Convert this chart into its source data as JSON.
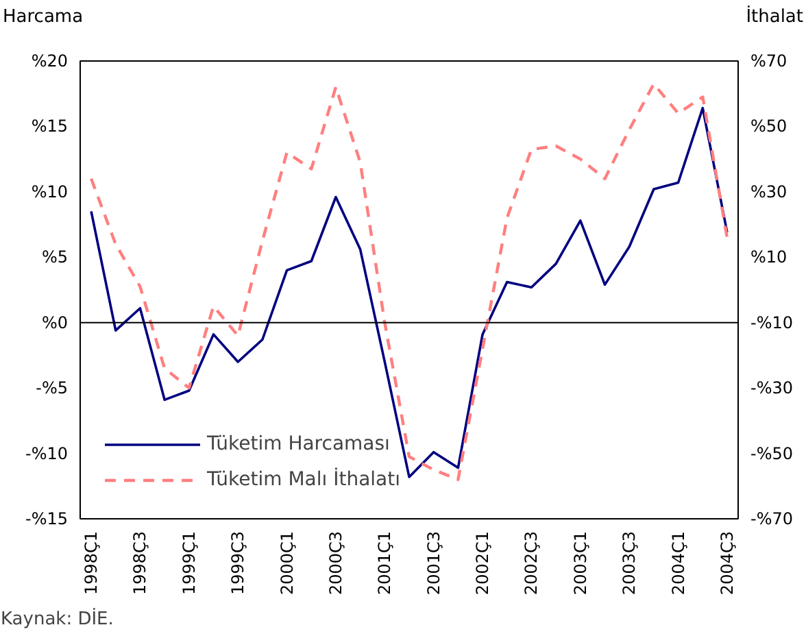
{
  "chart_data": {
    "type": "line",
    "ylabel": "Harcama",
    "y2label": "İthalat",
    "categories": [
      "1998Ç1",
      null,
      "1998Ç3",
      null,
      "1999Ç1",
      null,
      "1999Ç3",
      null,
      "2000Ç1",
      null,
      "2000Ç3",
      null,
      "2001Ç1",
      null,
      "2001Ç3",
      null,
      "2002Ç1",
      null,
      "2002Ç3",
      null,
      "2003Ç1",
      null,
      "2003Ç3",
      null,
      "2004Ç1",
      null,
      "2004Ç3"
    ],
    "series": [
      {
        "name": "Tüketim Harcaması",
        "color": "#000080",
        "line_style": "solid",
        "values": [
          8.5,
          -0.6,
          1.1,
          -5.9,
          -5.2,
          -0.9,
          -3.0,
          -1.3,
          4.0,
          4.7,
          9.6,
          5.6,
          -3.0,
          -11.8,
          -9.9,
          -11.1,
          -0.9,
          3.1,
          2.7,
          4.5,
          7.8,
          2.9,
          5.8,
          10.2,
          10.7,
          16.4,
          6.9
        ]
      },
      {
        "name": "Tüketim Malı İthalatı",
        "color": "#ff7f7f",
        "line_style": "dashed",
        "axis": "y2",
        "values": [
          34,
          14,
          1,
          -24,
          -30,
          -5,
          -14,
          15,
          42,
          37,
          62,
          39,
          -10,
          -51,
          -55,
          -58,
          -18,
          22,
          43,
          44,
          40,
          34,
          49,
          63,
          54,
          59,
          16
        ]
      }
    ],
    "ylim": [
      -15,
      20
    ],
    "yticks": [
      {
        "value": -15,
        "label": "-%15"
      },
      {
        "value": -10,
        "label": "-%10"
      },
      {
        "value": -5,
        "label": "-%5"
      },
      {
        "value": 0,
        "label": "%0"
      },
      {
        "value": 5,
        "label": "%5"
      },
      {
        "value": 10,
        "label": "%10"
      },
      {
        "value": 15,
        "label": "%15"
      },
      {
        "value": 20,
        "label": "%20"
      }
    ],
    "y2lim": [
      -70,
      70
    ],
    "y2ticks": [
      {
        "value": -70,
        "label": "-%70"
      },
      {
        "value": -50,
        "label": "-%50"
      },
      {
        "value": -30,
        "label": "-%30"
      },
      {
        "value": -10,
        "label": "-%10"
      },
      {
        "value": 10,
        "label": "%10"
      },
      {
        "value": 30,
        "label": "%30"
      },
      {
        "value": 50,
        "label": "%50"
      },
      {
        "value": 70,
        "label": "%70"
      }
    ],
    "ref_lines": [
      {
        "axis": "y",
        "value": 0,
        "color": "#000000"
      }
    ],
    "grid": false,
    "legend": "bottom left",
    "marker": "none",
    "annotations": [
      "Kaynak: DİE."
    ]
  }
}
